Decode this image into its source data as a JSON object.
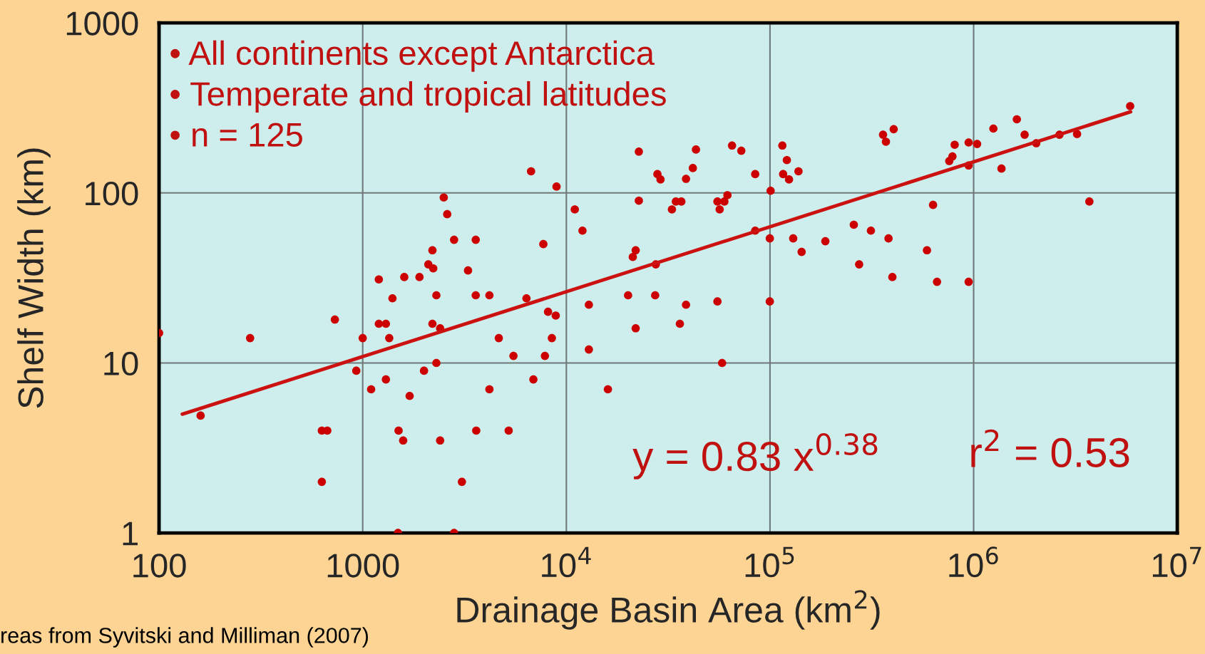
{
  "chart_data": {
    "type": "scatter",
    "xlabel": "Drainage Basin Area (km$^{2}$)",
    "ylabel": "Shelf Width (km)",
    "log": "xy",
    "grid": true,
    "xlim": [
      100,
      10000000
    ],
    "ylim": [
      1,
      1000
    ],
    "xticks": [
      100,
      1000,
      {
        "value": 10000,
        "label": "10$^{4}$"
      },
      {
        "value": 100000,
        "label": "10$^{5}$"
      },
      {
        "value": 1000000,
        "label": "10$^{6}$"
      },
      {
        "value": 10000000,
        "label": "10$^{7}$"
      }
    ],
    "yticks": [
      1,
      10,
      100,
      1000
    ],
    "annotations": [
      "• All continents except Antarctica",
      "• Temperate and tropical latitudes",
      "• n = 125",
      "y = 0.83 x$^{0.38}$",
      "r$^{2}$ = 0.53",
      "reas from Syvitski and Milliman (2007)"
    ],
    "series": [
      {
        "marker": "circle",
        "color": "#cc0000",
        "x": [
          100,
          160,
          280,
          630,
          670,
          630,
          730,
          930,
          1000,
          1100,
          1200,
          1200,
          1300,
          1300,
          1350,
          1400,
          1490,
          1500,
          1580,
          1600,
          1700,
          1900,
          2000,
          2100,
          2200,
          2220,
          2200,
          2300,
          2300,
          2400,
          2400,
          2500,
          2600,
          2810,
          2810,
          3070,
          3290,
          3590,
          3590,
          3610,
          4190,
          4190,
          4660,
          5210,
          5500,
          6370,
          6710,
          6890,
          7710,
          7850,
          8130,
          8490,
          8870,
          8950,
          11000,
          12000,
          12900,
          12900,
          16000,
          20100,
          21200,
          21900,
          21900,
          22700,
          22700,
          27500,
          27300,
          28000,
          29000,
          33000,
          34500,
          36700,
          36100,
          38700,
          38700,
          41800,
          43300,
          55200,
          55200,
          56600,
          58200,
          59700,
          61800,
          65100,
          72300,
          84600,
          84600,
          100700,
          99800,
          99800,
          115000,
          116000,
          121000,
          124000,
          130000,
          138000,
          143000,
          187000,
          258000,
          274000,
          313000,
          359000,
          371000,
          405000,
          382000,
          399000,
          590000,
          632000,
          661000,
          759000,
          787000,
          807000,
          945000,
          945000,
          945000,
          1040000,
          1250000,
          1370000,
          1630000,
          1780000,
          2030000,
          2640000,
          3220000,
          3700000,
          5870000
        ],
        "values": [
          15,
          4.9,
          14,
          4,
          4,
          2,
          18,
          9,
          14,
          7,
          31,
          17,
          17,
          8,
          14,
          24,
          1,
          4,
          3.5,
          32,
          6.4,
          32,
          9,
          38,
          46,
          36,
          17,
          10,
          25,
          16,
          3.5,
          94,
          75,
          1,
          53,
          2,
          35,
          53,
          25,
          4,
          25,
          7,
          14,
          4,
          11,
          24,
          134,
          8,
          50,
          11,
          20,
          14,
          19,
          109,
          80,
          60,
          22,
          12,
          7,
          25,
          42,
          46,
          16,
          175,
          90,
          38,
          25,
          129,
          120,
          80,
          89,
          89,
          17,
          121,
          22,
          140,
          180,
          23,
          89,
          80,
          10,
          89,
          97,
          190,
          177,
          129,
          60,
          103,
          54,
          23,
          190,
          129,
          156,
          120,
          54,
          134,
          45,
          52,
          65,
          38,
          60,
          220,
          200,
          237,
          54,
          32,
          46,
          85,
          30,
          154,
          164,
          192,
          30,
          198,
          145,
          194,
          239,
          139,
          271,
          220,
          196,
          220,
          222,
          89,
          324
        ]
      },
      {
        "type": "line",
        "color": "#cc1111",
        "x": [
          130,
          5900000
        ],
        "values": [
          5,
          300
        ]
      }
    ]
  }
}
